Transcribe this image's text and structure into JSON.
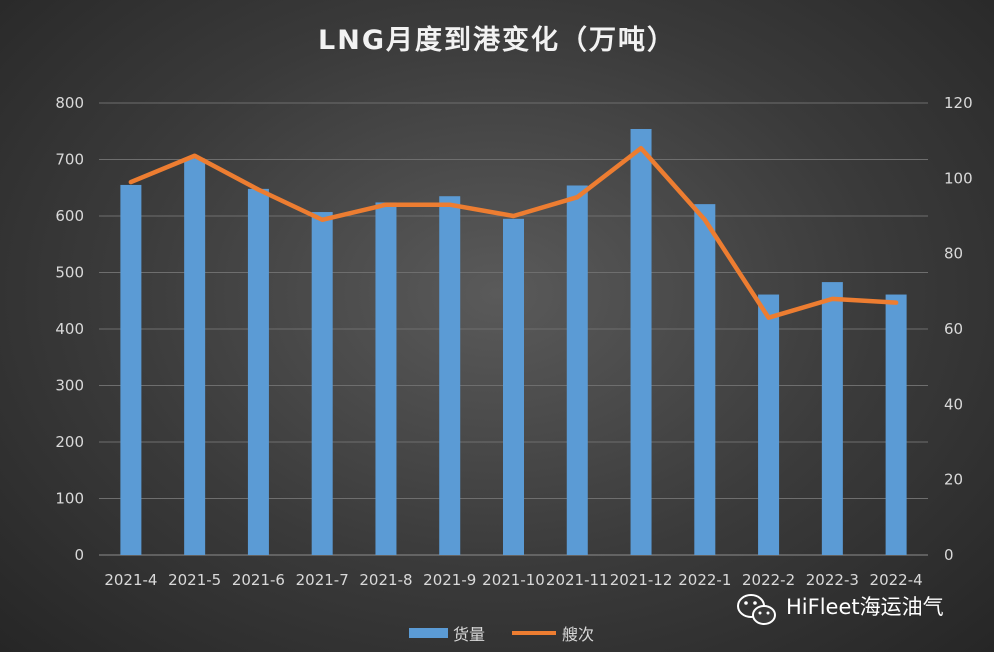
{
  "chart_data": {
    "type": "bar",
    "title": "LNG月度到港变化（万吨）",
    "categories": [
      "2021-4",
      "2021-5",
      "2021-6",
      "2021-7",
      "2021-8",
      "2021-9",
      "2021-10",
      "2021-11",
      "2021-12",
      "2022-1",
      "2022-2",
      "2022-3",
      "2022-4"
    ],
    "series": [
      {
        "name": "货量",
        "type": "bar",
        "axis": "left",
        "color": "#5b9bd5",
        "values": [
          655,
          702,
          648,
          607,
          624,
          635,
          595,
          654,
          754,
          621,
          461,
          483,
          461
        ]
      },
      {
        "name": "艘次",
        "type": "line",
        "axis": "right",
        "color": "#ed7d31",
        "values": [
          99,
          106,
          97,
          89,
          93,
          93,
          90,
          95,
          108,
          89,
          63,
          68,
          67
        ]
      }
    ],
    "y_left": {
      "min": 0,
      "max": 800,
      "ticks": [
        0,
        100,
        200,
        300,
        400,
        500,
        600,
        700,
        800
      ]
    },
    "y_right": {
      "min": 0,
      "max": 120,
      "ticks": [
        0,
        20,
        40,
        60,
        80,
        100,
        120
      ]
    },
    "grid": true,
    "legend_position": "bottom"
  },
  "watermark": {
    "text": "HiFleet海运油气",
    "icon": "wechat-icon"
  }
}
